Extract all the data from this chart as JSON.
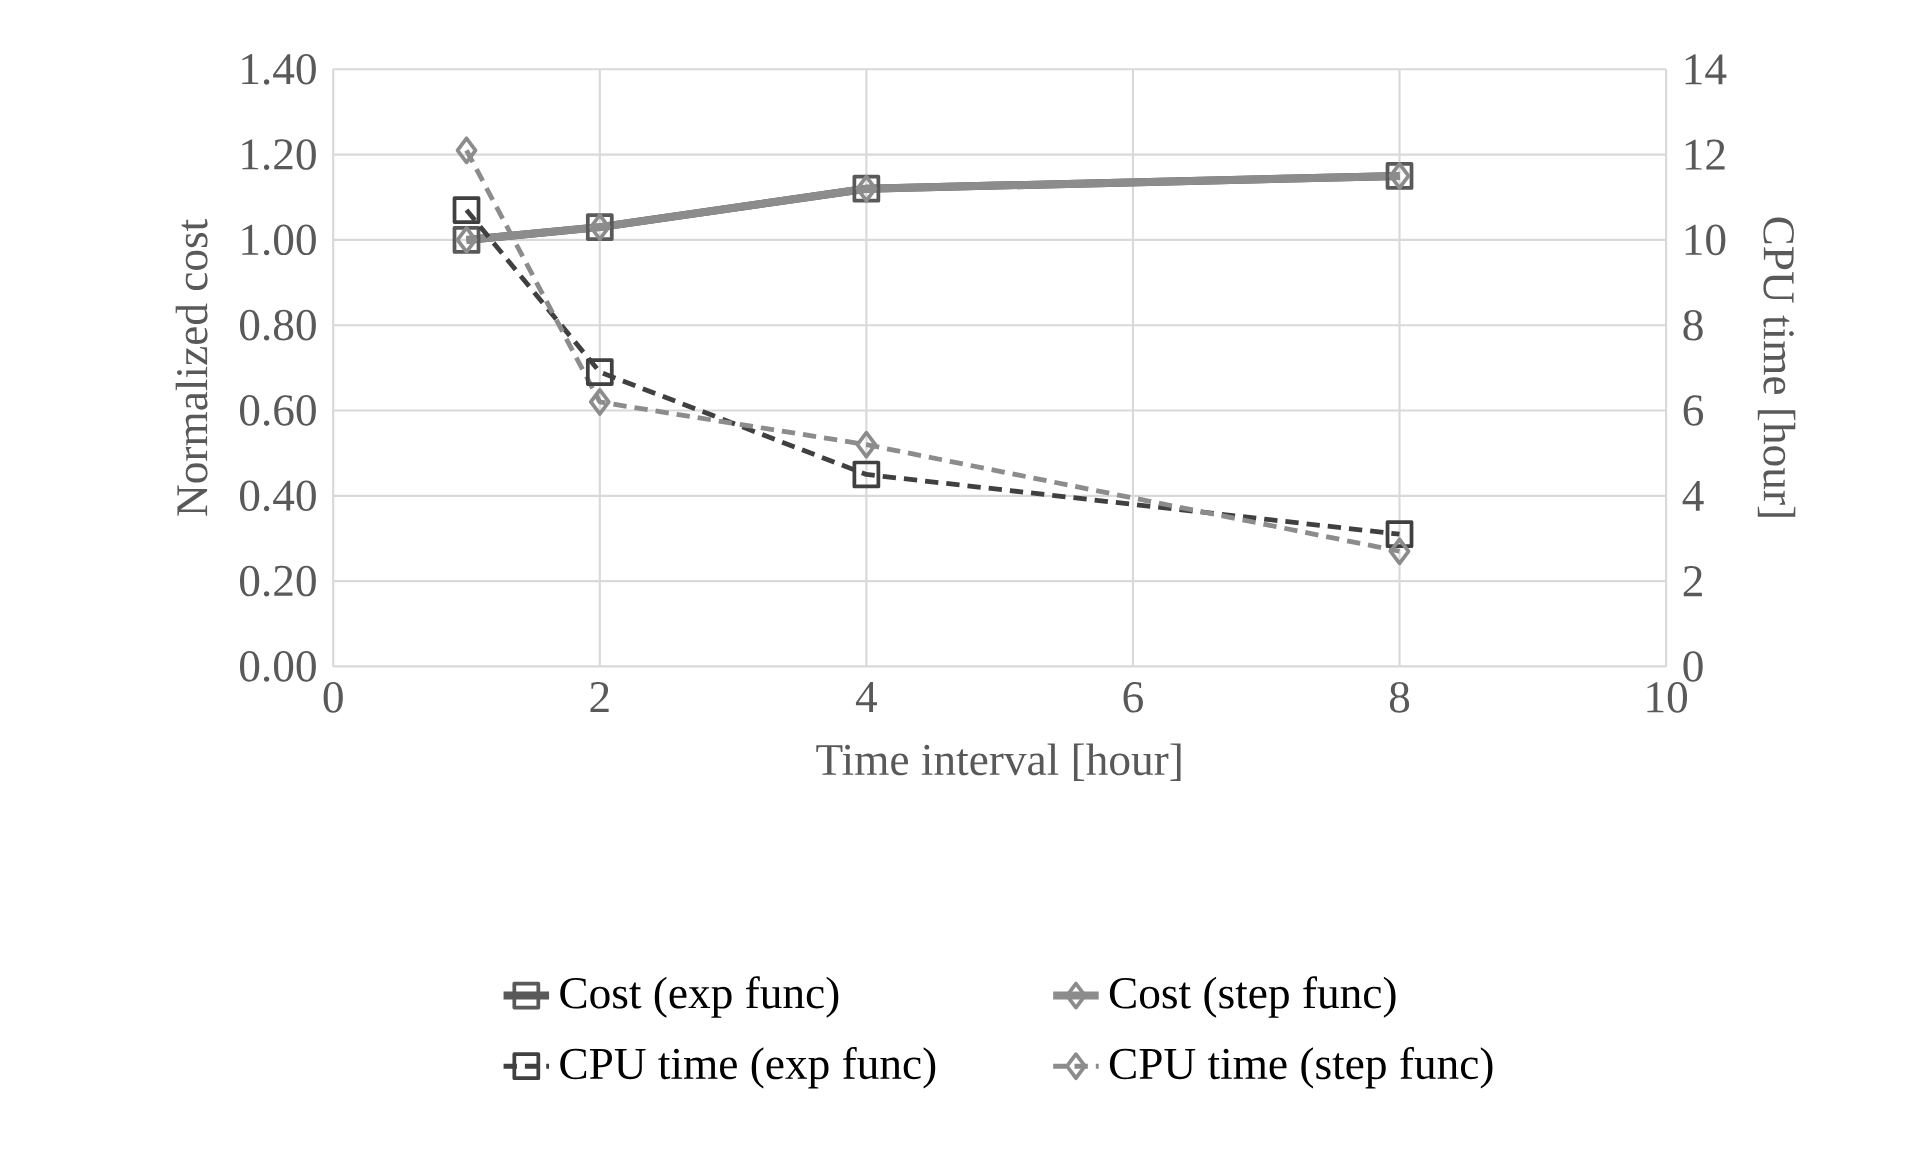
{
  "chart_data": {
    "type": "line",
    "xlabel": "Time interval [hour]",
    "ylabel": "Normalized cost",
    "y2label": "CPU time [hour]",
    "x": [
      1,
      2,
      4,
      8
    ],
    "series": [
      {
        "name": "Cost (exp func)",
        "color": "#595959",
        "values": [
          1.0,
          1.03,
          1.12,
          1.15
        ],
        "marker": "square",
        "line_style": "solid"
      },
      {
        "name": "Cost (step func)",
        "color": "#8c8c8c",
        "values": [
          1.0,
          1.03,
          1.12,
          1.15
        ],
        "marker": "diamond",
        "line_style": "solid"
      },
      {
        "name": "CPU time (exp func)",
        "color": "#404040",
        "values": [
          10.7,
          6.9,
          4.5,
          3.1
        ],
        "marker": "square",
        "line_style": "dashed",
        "axis": "y2"
      },
      {
        "name": "CPU time (step func)",
        "color": "#8c8c8c",
        "values": [
          12.1,
          6.2,
          5.2,
          2.7
        ],
        "marker": "diamond",
        "line_style": "dashed",
        "axis": "y2"
      }
    ],
    "xlim": [
      0,
      10
    ],
    "xticks": [
      0,
      2,
      4,
      6,
      8,
      10
    ],
    "ylim": [
      0,
      1.4
    ],
    "yticks": [
      {
        "value": 0,
        "label": "0.00"
      },
      {
        "value": 0.2,
        "label": "0.20"
      },
      {
        "value": 0.4,
        "label": "0.40"
      },
      {
        "value": 0.6,
        "label": "0.60"
      },
      {
        "value": 0.8,
        "label": "0.80"
      },
      {
        "value": 1.0,
        "label": "1.00"
      },
      {
        "value": 1.2,
        "label": "1.20"
      },
      {
        "value": 1.4,
        "label": "1.40"
      }
    ],
    "y2lim": [
      0,
      14
    ],
    "y2ticks": [
      0,
      2,
      4,
      6,
      8,
      10,
      12,
      14
    ],
    "grid": true,
    "legend": "bottom"
  }
}
